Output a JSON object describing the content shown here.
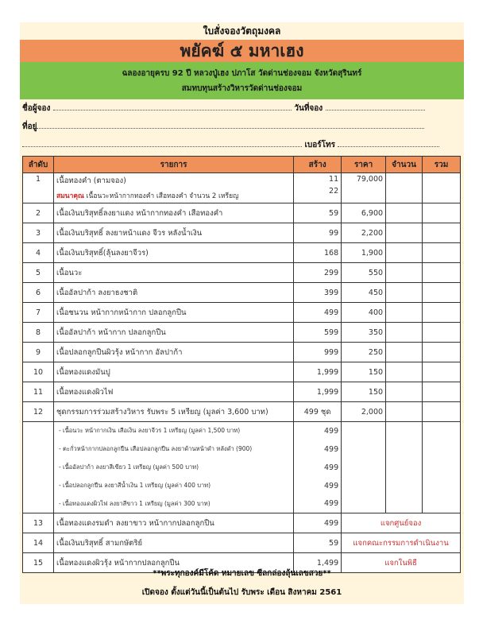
{
  "header": {
    "form_title": "ใบสั่งจองวัตถุมงคล",
    "main_title": "พยัคฆ์ ๕ มหาเฮง",
    "subtitle_1": "ฉลองอายุครบ 92 ปี หลวงปู่เฮง  ปภาโส วัดด่านช่องจอม จังหวัดสุรินทร์",
    "subtitle_2": "สมทบทุนสร้างวิหารวัดด่านช่องจอม"
  },
  "fields": {
    "name_label": "ชื่อผู้จอง",
    "date_label": "วันที่จอง",
    "address_label": "ที่อยู่",
    "phone_label": "เบอร์โทร"
  },
  "table": {
    "headers": [
      "ลำดับ",
      "รายการ",
      "สร้าง",
      "ราคา",
      "จำนวน",
      "รวม"
    ],
    "row1": {
      "no": "1",
      "item": "เนื้อทองคำ (ตามจอง)",
      "built": "11",
      "price": "79,000",
      "bonus_label": "สมนาคุณ",
      "bonus_item": "เนื้อนวะหน้ากากทองคำ เสือทองคำ จำนวน 2 เหรียญ",
      "bonus_built": "22"
    },
    "rows": [
      {
        "no": "2",
        "item": "เนื้อเงินบริสุทธิ์ลงยาแดง หน้ากากทองคำ เสือทองคำ",
        "built": "59",
        "price": "6,900"
      },
      {
        "no": "3",
        "item": "เนื้อเงินบริสุทธิ์ ลงยาหน้าแดง จีวร หลังน้ำเงิน",
        "built": "99",
        "price": "2,200"
      },
      {
        "no": "4",
        "item": "เนื้อเงินบริสุทธิ์(ลุ้นลงยาจีวร)",
        "built": "168",
        "price": "1,900"
      },
      {
        "no": "5",
        "item": "เนื้อนวะ",
        "built": "299",
        "price": "550"
      },
      {
        "no": "6",
        "item": "เนื้ออัลปาก้า ลงยาธงชาติ",
        "built": "399",
        "price": "450"
      },
      {
        "no": "7",
        "item": "เนื้อชนวน หน้ากากหน้ากาก ปลอกลูกปืน",
        "built": "499",
        "price": "400"
      },
      {
        "no": "8",
        "item": "เนื้ออัลปาก้า หน้ากาก ปลอกลูกปืน",
        "built": "599",
        "price": "350"
      },
      {
        "no": "9",
        "item": "เนื้อปลอกลูกปืนผิวรุ้ง หน้ากาก อัลปาก้า",
        "built": "999",
        "price": "250"
      },
      {
        "no": "10",
        "item": "เนื้อทองแดงมันปู",
        "built": "1,999",
        "price": "150"
      },
      {
        "no": "11",
        "item": "เนื้อทองแดงผิวไฟ",
        "built": "1,999",
        "price": "150"
      },
      {
        "no": "12",
        "item": "ชุดกรรมการร่วมสร้างวิหาร รับพระ 5 เหรียญ (มูลค่า 3,600 บาท)",
        "built": "499 ชุด",
        "price": "2,000"
      }
    ],
    "set_items": [
      {
        "item": "- เนื้อนวะ หน้ากากเงิน เสือเงิน ลงยาจีวร 1 เหรียญ (มูลค่า 1,500 บาท)",
        "built": "499"
      },
      {
        "item": "- ตะกั่วหน้ากากปลอกลูกปืน เสือปลอกลูกปืน ลงยาด้านหน้าดำ หลังดำ (900)",
        "built": "499"
      },
      {
        "item": "- เนื้ออัลปาก้า ลงยาสีเขียว 1 เหรียญ (มูลค่า 500 บาท)",
        "built": "499"
      },
      {
        "item": "- เนื้อปลอกลูกปืน ลงยาสีน้ำเงิน 1 เหรียญ (มูลค่า 400 บาท)",
        "built": "499"
      },
      {
        "item": "- เนื้อทองแดงผิวไฟ  ลงยาสีขาว 1 เหรียญ (มูลค่า 300 บาท)",
        "built": "499"
      }
    ],
    "free_rows": [
      {
        "no": "13",
        "item": "เนื้อทองแดงรมดำ ลงยาขาว หน้ากากปลอกลูกปืน",
        "built": "499",
        "note": "แจกศูนย์จอง"
      },
      {
        "no": "14",
        "item": "เนื้อเงินบริสุทธิ์ สามกษัตริย์",
        "built": "59",
        "note": "แจกคณะกรรมการดำเนินงาน"
      },
      {
        "no": "15",
        "item": "เนื้อทองแดงผิวรุ้ง หน้ากากปลอกลูกปืน",
        "built": "1,499",
        "note": "แจกในพิธี"
      }
    ]
  },
  "footer": {
    "line1": "**พระทุกองค์มีโค้ด หมายเลข ซีลกล่องลุ้นเลขสวย**",
    "line2": "เปิดจอง ตั้งแต่วันนี้เป็นต้นไป   รับพระ เดือน สิงหาคม 2561"
  },
  "colors": {
    "cream": "#fff5dc",
    "orange": "#f0915a",
    "green": "#7dc24b",
    "red": "#d02020"
  }
}
